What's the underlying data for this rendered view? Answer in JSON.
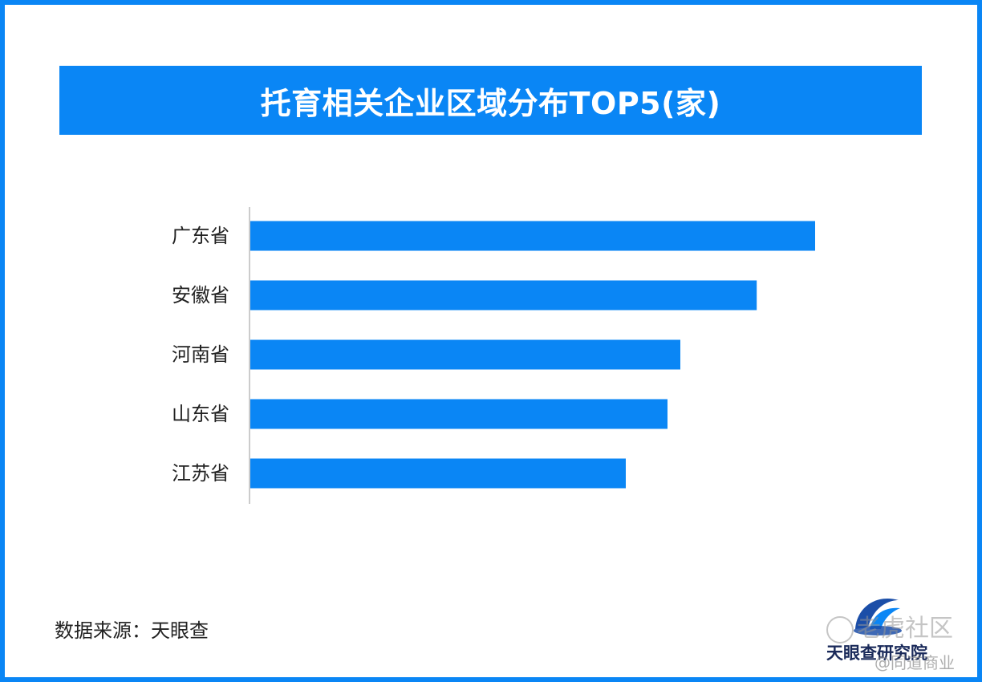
{
  "chart_data": {
    "type": "bar",
    "orientation": "horizontal",
    "title": "托育相关企业区域分布TOP5(家)",
    "categories": [
      "广东省",
      "安徽省",
      "河南省",
      "山东省",
      "江苏省"
    ],
    "values": [
      88000,
      78900,
      67000,
      65000,
      58500
    ],
    "xlim": [
      0,
      110000
    ],
    "grid": false,
    "bar_color": "#0a86f5"
  },
  "footer": {
    "source": "数据来源：天眼查"
  },
  "logo": {
    "name": "天眼查研究院"
  },
  "watermark": {
    "primary": "老虎社区",
    "secondary": "@同道商业"
  },
  "colors": {
    "accent": "#0a86f5",
    "border": "#0a86f5",
    "title_text": "#ffffff"
  }
}
